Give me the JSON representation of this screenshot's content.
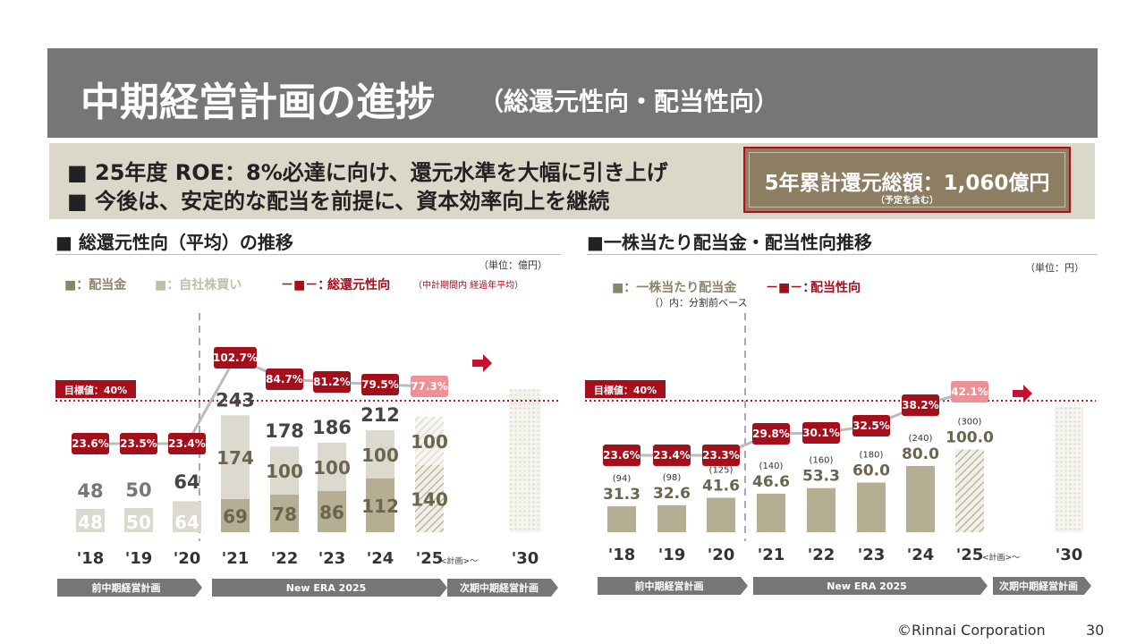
{
  "header": {
    "title": "中期経営計画の進捗",
    "subtitle": "（総還元性向・配当性向）"
  },
  "summary": {
    "bullets": [
      "■ 25年度 ROE：8%必達に向け、還元水準を大幅に引き上げ",
      "■ 今後は、安定的な配当を前提に、資本効率向上を継続"
    ],
    "badge_main": "5年累計還元総額：1,060億円",
    "badge_note": "（予定を含む）"
  },
  "footer": {
    "copyright": "©Rinnai Corporation",
    "page_number": "30"
  },
  "colors": {
    "dividend": "#b5ae93",
    "buyback": "#dcd9ce",
    "ratio_box": "#a3101b",
    "plan_box": "#ef8f96",
    "target_line": "#b31b2a",
    "arrow": "#c8102e"
  },
  "chart_data": [
    {
      "type": "bar",
      "title": "■ 総還元性向（平均）の推移",
      "unit": "（単位：億円）",
      "legend": {
        "dividend": "■：配当金",
        "buyback": "■：自社株買い",
        "line_prefix": "－■－：",
        "line": "総還元性向",
        "line_note": "（中計期間内 経過年平均）"
      },
      "target_label": "目標値：40%",
      "categories": [
        "'18",
        "'19",
        "'20",
        "'21",
        "'22",
        "'23",
        "'24",
        "'25",
        "'30"
      ],
      "plan_suffix": "<計画>〜",
      "series": [
        {
          "name": "配当金",
          "values": [
            48,
            50,
            64,
            69,
            78,
            86,
            112,
            140,
            null
          ]
        },
        {
          "name": "自社株買い",
          "values": [
            0,
            0,
            0,
            174,
            100,
            100,
            100,
            100,
            null
          ]
        }
      ],
      "segment_labels": {
        "dividend": [
          "48",
          "50",
          "64",
          "69",
          "78",
          "86",
          "112",
          "140",
          ""
        ],
        "buyback": [
          "",
          "",
          "",
          "174",
          "100",
          "100",
          "100",
          "100",
          ""
        ]
      },
      "totals": [
        "48",
        "50",
        "64",
        "243",
        "178",
        "186",
        "212",
        "",
        ""
      ],
      "ratio": {
        "name": "総還元性向",
        "values": [
          23.6,
          23.5,
          23.4,
          102.7,
          84.7,
          81.2,
          79.5,
          77.3
        ],
        "labels": [
          "23.6%",
          "23.5%",
          "23.4%",
          "102.7%",
          "84.7%",
          "81.2%",
          "79.5%",
          "77.3%"
        ]
      },
      "periods": [
        "前中期経営計画",
        "New ERA 2025",
        "次期中期経営計画"
      ]
    },
    {
      "type": "bar",
      "title": "■一株当たり配当金・配当性向推移",
      "unit": "（単位：円）",
      "legend": {
        "dividend": "■：一株当たり配当金",
        "line_prefix": "－■－：",
        "line": "配当性向",
        "note": "（）内：分割前ベース"
      },
      "target_label": "目標値：40%",
      "categories": [
        "'18",
        "'19",
        "'20",
        "'21",
        "'22",
        "'23",
        "'24",
        "'25",
        "'30"
      ],
      "plan_suffix": "<計画>〜",
      "series": [
        {
          "name": "一株当たり配当金",
          "values": [
            31.3,
            32.6,
            41.6,
            46.6,
            53.3,
            60.0,
            80.0,
            100.0,
            null
          ]
        }
      ],
      "value_labels": [
        "31.3",
        "32.6",
        "41.6",
        "46.6",
        "53.3",
        "60.0",
        "80.0",
        "100.0",
        ""
      ],
      "pre_split_labels": [
        "(94)",
        "(98)",
        "(125)",
        "(140)",
        "(160)",
        "(180)",
        "(240)",
        "(300)",
        ""
      ],
      "ratio": {
        "name": "配当性向",
        "values": [
          23.6,
          23.4,
          23.3,
          29.8,
          30.1,
          32.5,
          38.2,
          42.1
        ],
        "labels": [
          "23.6%",
          "23.4%",
          "23.3%",
          "29.8%",
          "30.1%",
          "32.5%",
          "38.2%",
          "42.1%"
        ]
      },
      "periods": [
        "前中期経営計画",
        "New ERA 2025",
        "次期中期経営計画"
      ]
    }
  ]
}
